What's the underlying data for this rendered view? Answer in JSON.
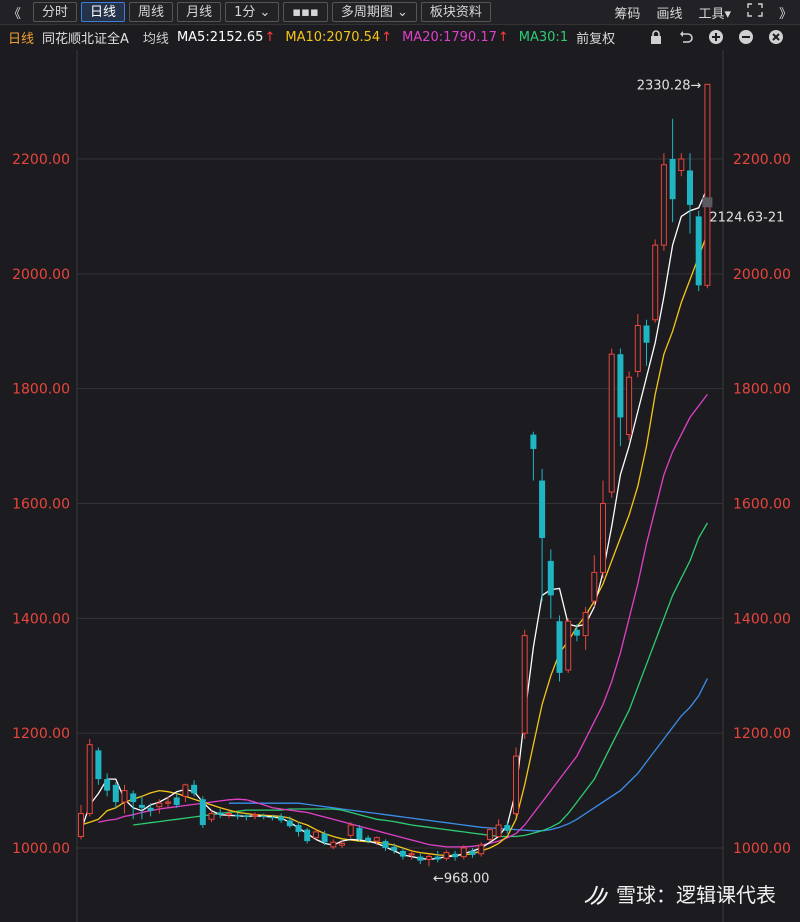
{
  "toolbar": {
    "left_arrows": "《",
    "tabs": [
      {
        "label": "分时",
        "active": false
      },
      {
        "label": "日线",
        "active": true
      },
      {
        "label": "周线",
        "active": false
      },
      {
        "label": "月线",
        "active": false
      },
      {
        "label": "1分 ⌄",
        "active": false
      },
      {
        "label": "▪▪▪",
        "active": false
      },
      {
        "label": "多周期图 ⌄",
        "active": false
      },
      {
        "label": "板块资料",
        "active": false
      }
    ],
    "right_items": [
      "筹码",
      "画线",
      "工具▾"
    ],
    "expand_icon": "expand-icon",
    "right_arrows": "》"
  },
  "info": {
    "period": "日线",
    "stock_name": "同花顺北证全A",
    "avg_line": "均线",
    "ma5": "MA5:2152.65",
    "ma10": "MA10:2070.54",
    "ma20": "MA20:1790.17",
    "ma30": "MA30:1",
    "adjust": "前复权",
    "icon_names": [
      "lock-icon",
      "undo-icon",
      "plus-circle-icon",
      "minus-circle-icon",
      "close-circle-icon"
    ]
  },
  "colors": {
    "up": "#e8453c",
    "down": "#1fb5c2",
    "ma5": "#ffffff",
    "ma10": "#f5c518",
    "ma20": "#e040c8",
    "ma30": "#2ecc71",
    "ma60": "#3a8eea",
    "axis_text": "#e8453c"
  },
  "chart_data": {
    "type": "candlestick",
    "y_ticks": [
      "2200.00",
      "2000.00",
      "1800.00",
      "1600.00",
      "1400.00",
      "1200.00",
      "1000.00"
    ],
    "y_tick_values": [
      2200,
      2000,
      1800,
      1600,
      1400,
      1200,
      1000
    ],
    "ylim": [
      955,
      2380
    ],
    "annotations": {
      "high_label": "2330.28→",
      "low_label": "←968.00",
      "price_label": "2124.63-21"
    },
    "candles": [
      [
        1020,
        1060,
        1015,
        1075
      ],
      [
        1060,
        1180,
        1055,
        1190
      ],
      [
        1170,
        1120,
        1110,
        1175
      ],
      [
        1120,
        1100,
        1090,
        1130
      ],
      [
        1110,
        1080,
        1070,
        1115
      ],
      [
        1080,
        1100,
        1060,
        1110
      ],
      [
        1095,
        1080,
        1050,
        1100
      ],
      [
        1075,
        1070,
        1050,
        1090
      ],
      [
        1070,
        1065,
        1055,
        1078
      ],
      [
        1072,
        1078,
        1060,
        1085
      ],
      [
        1078,
        1080,
        1070,
        1090
      ],
      [
        1088,
        1075,
        1070,
        1095
      ],
      [
        1090,
        1110,
        1080,
        1112
      ],
      [
        1110,
        1095,
        1090,
        1118
      ],
      [
        1085,
        1040,
        1035,
        1090
      ],
      [
        1050,
        1060,
        1045,
        1065
      ],
      [
        1062,
        1058,
        1052,
        1068
      ],
      [
        1058,
        1060,
        1052,
        1065
      ],
      [
        1058,
        1055,
        1050,
        1062
      ],
      [
        1057,
        1054,
        1048,
        1060
      ],
      [
        1056,
        1058,
        1050,
        1062
      ],
      [
        1056,
        1054,
        1050,
        1060
      ],
      [
        1054,
        1052,
        1048,
        1058
      ],
      [
        1055,
        1048,
        1044,
        1060
      ],
      [
        1048,
        1038,
        1035,
        1055
      ],
      [
        1040,
        1028,
        1020,
        1045
      ],
      [
        1032,
        1012,
        1008,
        1035
      ],
      [
        1018,
        1028,
        1015,
        1032
      ],
      [
        1025,
        1010,
        1005,
        1030
      ],
      [
        1002,
        1010,
        998,
        1015
      ],
      [
        1005,
        1008,
        1000,
        1012
      ],
      [
        1022,
        1040,
        1018,
        1045
      ],
      [
        1035,
        1015,
        1012,
        1040
      ],
      [
        1018,
        1012,
        1008,
        1022
      ],
      [
        1012,
        1018,
        1005,
        1020
      ],
      [
        1012,
        1000,
        995,
        1015
      ],
      [
        1002,
        995,
        990,
        1008
      ],
      [
        995,
        985,
        980,
        1000
      ],
      [
        988,
        990,
        980,
        995
      ],
      [
        985,
        978,
        972,
        990
      ],
      [
        980,
        985,
        968,
        990
      ],
      [
        985,
        980,
        975,
        995
      ],
      [
        982,
        992,
        978,
        996
      ],
      [
        990,
        984,
        978,
        995
      ],
      [
        985,
        1000,
        980,
        1005
      ],
      [
        995,
        988,
        983,
        1000
      ],
      [
        990,
        1005,
        985,
        1010
      ],
      [
        1015,
        1032,
        1010,
        1036
      ],
      [
        1020,
        1040,
        1018,
        1050
      ],
      [
        1040,
        1030,
        1025,
        1045
      ],
      [
        1060,
        1160,
        1055,
        1175
      ],
      [
        1200,
        1370,
        1190,
        1380
      ],
      [
        1720,
        1695,
        1640,
        1725
      ],
      [
        1640,
        1540,
        1430,
        1660
      ],
      [
        1500,
        1440,
        1400,
        1520
      ],
      [
        1395,
        1305,
        1290,
        1405
      ],
      [
        1310,
        1395,
        1305,
        1400
      ],
      [
        1380,
        1370,
        1360,
        1390
      ],
      [
        1370,
        1410,
        1345,
        1420
      ],
      [
        1430,
        1480,
        1420,
        1510
      ],
      [
        1480,
        1600,
        1470,
        1640
      ],
      [
        1620,
        1860,
        1610,
        1870
      ],
      [
        1860,
        1750,
        1700,
        1870
      ],
      [
        1720,
        1820,
        1710,
        1830
      ],
      [
        1830,
        1910,
        1820,
        1930
      ],
      [
        1910,
        1880,
        1840,
        1920
      ],
      [
        1920,
        2050,
        1915,
        2060
      ],
      [
        2050,
        2190,
        2040,
        2210
      ],
      [
        2200,
        2130,
        2090,
        2270
      ],
      [
        2180,
        2200,
        2170,
        2210
      ],
      [
        2180,
        2120,
        2070,
        2210
      ],
      [
        2100,
        1980,
        1970,
        2110
      ],
      [
        1980,
        2330,
        1975,
        2330
      ]
    ],
    "ma5": [
      1030,
      1075,
      1095,
      1120,
      1120,
      1085,
      1070,
      1065,
      1075,
      1080,
      1088,
      1098,
      1102,
      1098,
      1080,
      1065,
      1058,
      1057,
      1056,
      1055,
      1056,
      1055,
      1054,
      1052,
      1045,
      1035,
      1025,
      1015,
      1008,
      1005,
      1012,
      1015,
      1014,
      1012,
      1008,
      1002,
      995,
      988,
      985,
      982,
      980,
      982,
      985,
      986,
      990,
      995,
      1000,
      1010,
      1020,
      1040,
      1100,
      1230,
      1350,
      1440,
      1450,
      1452,
      1390,
      1386,
      1390,
      1420,
      1480,
      1560,
      1650,
      1700,
      1760,
      1820,
      1880,
      1960,
      2050,
      2100,
      2110,
      2115,
      2150
    ],
    "ma10": [
      1040,
      1045,
      1050,
      1065,
      1070,
      1080,
      1085,
      1090,
      1096,
      1100,
      1098,
      1095,
      1090,
      1085,
      1080,
      1075,
      1070,
      1066,
      1062,
      1060,
      1058,
      1057,
      1056,
      1055,
      1052,
      1045,
      1040,
      1032,
      1025,
      1020,
      1016,
      1014,
      1012,
      1011,
      1010,
      1008,
      1005,
      1000,
      995,
      992,
      990,
      988,
      987,
      987,
      988,
      990,
      995,
      1000,
      1008,
      1020,
      1050,
      1110,
      1180,
      1250,
      1300,
      1340,
      1360,
      1385,
      1405,
      1430,
      1460,
      1500,
      1540,
      1580,
      1630,
      1700,
      1790,
      1860,
      1900,
      1950,
      1990,
      2030,
      2070
    ],
    "ma20": [
      1045,
      1048,
      1050,
      1055,
      1058,
      1062,
      1065,
      1068,
      1070,
      1072,
      1074,
      1076,
      1078,
      1080,
      1082,
      1084,
      1085,
      1084,
      1080,
      1075,
      1070,
      1068,
      1066,
      1064,
      1062,
      1058,
      1054,
      1050,
      1046,
      1042,
      1038,
      1034,
      1030,
      1026,
      1022,
      1018,
      1014,
      1010,
      1006,
      1004,
      1002,
      1002,
      1002,
      1003,
      1005,
      1008,
      1012,
      1018,
      1025,
      1040,
      1060,
      1080,
      1100,
      1120,
      1140,
      1160,
      1190,
      1220,
      1250,
      1290,
      1340,
      1400,
      1460,
      1530,
      1590,
      1650,
      1690,
      1720,
      1750,
      1770,
      1790
    ],
    "ma30": [
      1040,
      1042,
      1044,
      1046,
      1048,
      1050,
      1052,
      1054,
      1056,
      1058,
      1060,
      1062,
      1064,
      1066,
      1066,
      1066,
      1066,
      1066,
      1068,
      1068,
      1068,
      1068,
      1068,
      1068,
      1066,
      1062,
      1058,
      1054,
      1050,
      1048,
      1046,
      1043,
      1040,
      1038,
      1036,
      1034,
      1032,
      1030,
      1028,
      1026,
      1024,
      1022,
      1020,
      1020,
      1020,
      1022,
      1026,
      1030,
      1036,
      1044,
      1060,
      1080,
      1100,
      1120,
      1150,
      1180,
      1210,
      1240,
      1280,
      1320,
      1360,
      1400,
      1440,
      1470,
      1500,
      1540,
      1566
    ],
    "ma60": [
      1078,
      1078,
      1078,
      1078,
      1078,
      1078,
      1078,
      1078,
      1078,
      1076,
      1074,
      1072,
      1070,
      1068,
      1066,
      1064,
      1062,
      1060,
      1058,
      1056,
      1054,
      1052,
      1050,
      1048,
      1046,
      1044,
      1042,
      1040,
      1038,
      1036,
      1035,
      1034,
      1033,
      1032,
      1031,
      1030,
      1030,
      1032,
      1036,
      1042,
      1050,
      1060,
      1070,
      1080,
      1090,
      1100,
      1115,
      1130,
      1150,
      1170,
      1190,
      1210,
      1230,
      1245,
      1265,
      1295
    ]
  },
  "watermark": {
    "brand": "雪球",
    "separator": "：",
    "author": "逻辑课代表"
  }
}
